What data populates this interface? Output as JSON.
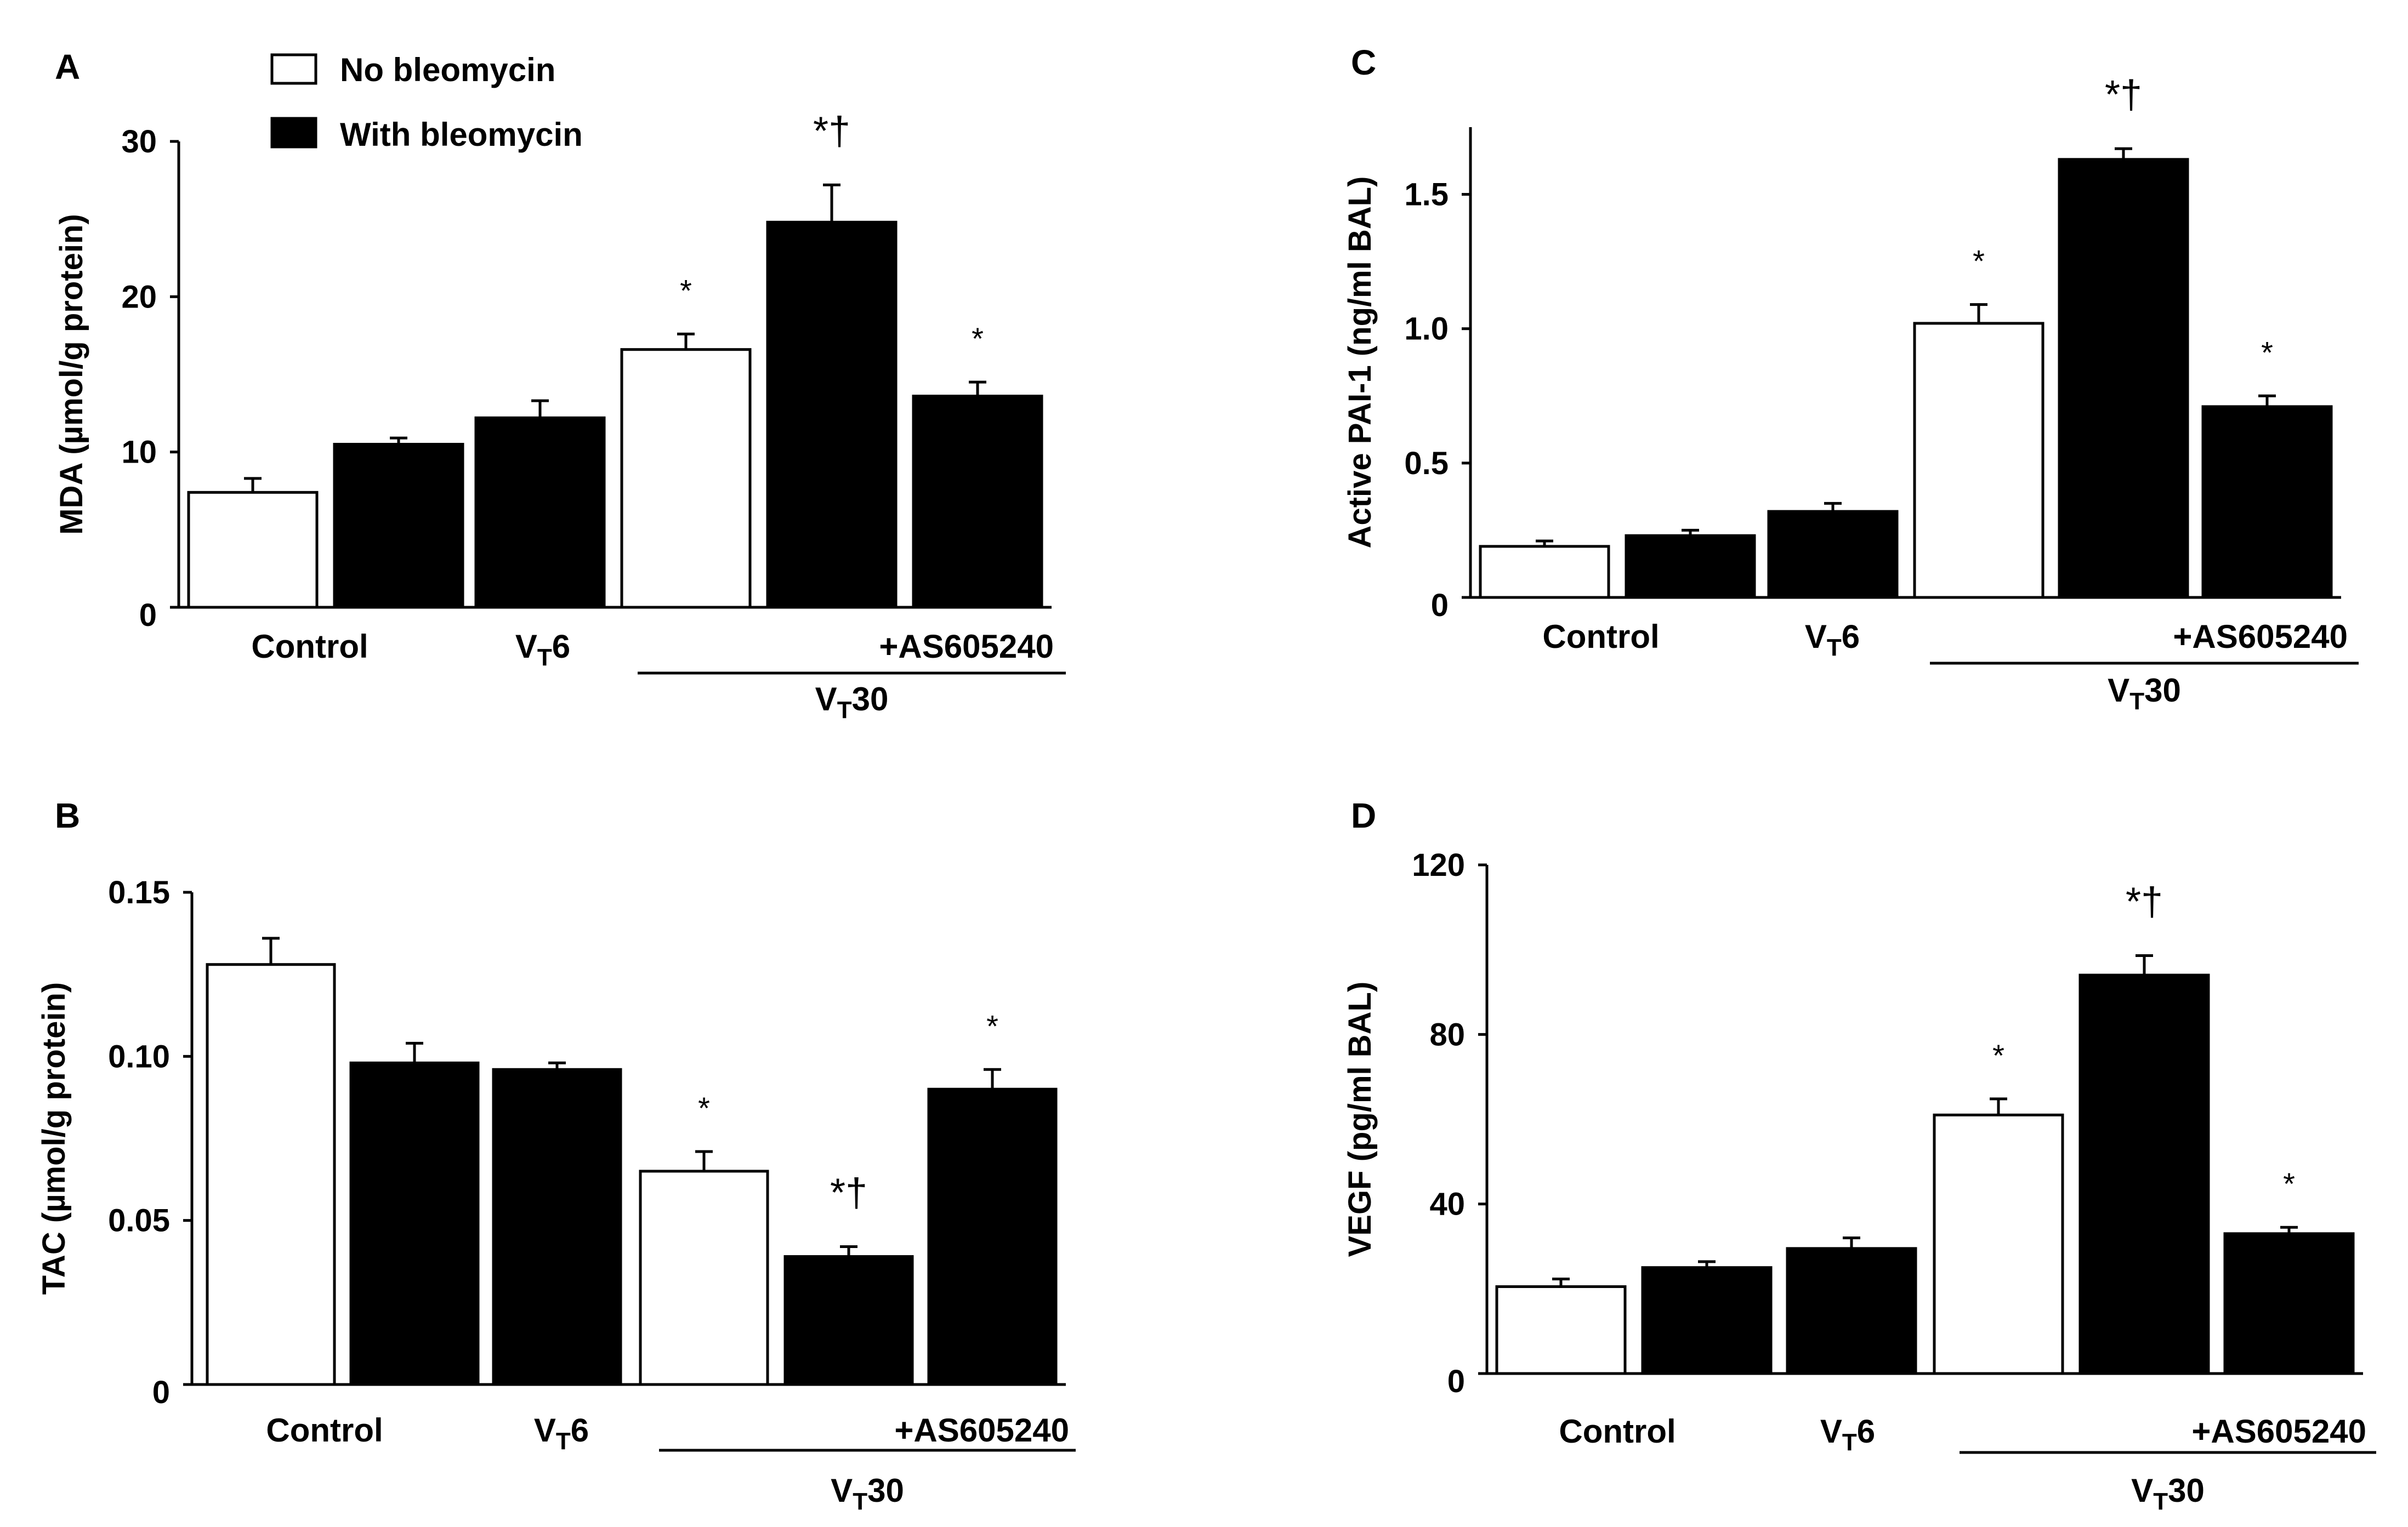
{
  "legend": [
    {
      "label": "No bleomycin",
      "color": "#ffffff"
    },
    {
      "label": "With bleomycin",
      "color": "#000000"
    }
  ],
  "chart_data": [
    {
      "type": "bar",
      "panel": "A",
      "ylabel": "MDA (µmol/g protein)",
      "ylim": [
        0,
        30
      ],
      "yticks": [
        0,
        10,
        20,
        30
      ],
      "ytick_labels": [
        "0",
        "10",
        "20",
        "30"
      ],
      "bars": [
        {
          "group": "Control",
          "bleomycin": false,
          "value": 7.4,
          "error": 0.9,
          "annotation": ""
        },
        {
          "group": "Control",
          "bleomycin": true,
          "value": 10.5,
          "error": 0.4,
          "annotation": ""
        },
        {
          "group": "VT6",
          "bleomycin": true,
          "value": 12.2,
          "error": 1.1,
          "annotation": ""
        },
        {
          "group": "VT30",
          "bleomycin": false,
          "value": 16.6,
          "error": 1.0,
          "annotation": "*"
        },
        {
          "group": "VT30",
          "bleomycin": true,
          "value": 24.8,
          "error": 2.4,
          "annotation": "*†"
        },
        {
          "group": "VT30+AS605240",
          "bleomycin": true,
          "value": 13.6,
          "error": 0.9,
          "annotation": "*"
        }
      ]
    },
    {
      "type": "bar",
      "panel": "B",
      "ylabel": "TAC (µmol/g protein)",
      "ylim": [
        0,
        0.15
      ],
      "yticks": [
        0,
        0.05,
        0.1,
        0.15
      ],
      "ytick_labels": [
        "0",
        "0.05",
        "0.10",
        "0.15"
      ],
      "bars": [
        {
          "group": "Control",
          "bleomycin": false,
          "value": 0.128,
          "error": 0.008,
          "annotation": ""
        },
        {
          "group": "Control",
          "bleomycin": true,
          "value": 0.098,
          "error": 0.006,
          "annotation": ""
        },
        {
          "group": "VT6",
          "bleomycin": true,
          "value": 0.096,
          "error": 0.002,
          "annotation": ""
        },
        {
          "group": "VT30",
          "bleomycin": false,
          "value": 0.065,
          "error": 0.006,
          "annotation": "*"
        },
        {
          "group": "VT30",
          "bleomycin": true,
          "value": 0.039,
          "error": 0.003,
          "annotation": "*†"
        },
        {
          "group": "VT30+AS605240",
          "bleomycin": true,
          "value": 0.09,
          "error": 0.006,
          "annotation": "*"
        }
      ]
    },
    {
      "type": "bar",
      "panel": "C",
      "ylabel": "Active PAI-1 (ng/ml BAL)",
      "ylim": [
        0,
        1.75
      ],
      "yticks": [
        0,
        0.5,
        1.0,
        1.5
      ],
      "ytick_labels": [
        "0",
        "0.5",
        "1.0",
        "1.5"
      ],
      "bars": [
        {
          "group": "Control",
          "bleomycin": false,
          "value": 0.19,
          "error": 0.02,
          "annotation": ""
        },
        {
          "group": "Control",
          "bleomycin": true,
          "value": 0.23,
          "error": 0.02,
          "annotation": ""
        },
        {
          "group": "VT6",
          "bleomycin": true,
          "value": 0.32,
          "error": 0.03,
          "annotation": ""
        },
        {
          "group": "VT30",
          "bleomycin": false,
          "value": 1.02,
          "error": 0.07,
          "annotation": "*"
        },
        {
          "group": "VT30",
          "bleomycin": true,
          "value": 1.63,
          "error": 0.04,
          "annotation": "*†"
        },
        {
          "group": "VT30+AS605240",
          "bleomycin": true,
          "value": 0.71,
          "error": 0.04,
          "annotation": "*"
        }
      ]
    },
    {
      "type": "bar",
      "panel": "D",
      "ylabel": "VEGF (pg/ml BAL)",
      "ylim": [
        0,
        120
      ],
      "yticks": [
        0,
        40,
        80,
        120
      ],
      "ytick_labels": [
        "0",
        "40",
        "80",
        "120"
      ],
      "bars": [
        {
          "group": "Control",
          "bleomycin": false,
          "value": 20.5,
          "error": 1.8,
          "annotation": ""
        },
        {
          "group": "Control",
          "bleomycin": true,
          "value": 25.0,
          "error": 1.4,
          "annotation": ""
        },
        {
          "group": "VT6",
          "bleomycin": true,
          "value": 29.5,
          "error": 2.5,
          "annotation": ""
        },
        {
          "group": "VT30",
          "bleomycin": false,
          "value": 61.0,
          "error": 3.8,
          "annotation": "*"
        },
        {
          "group": "VT30",
          "bleomycin": true,
          "value": 94.0,
          "error": 4.6,
          "annotation": "*†"
        },
        {
          "group": "VT30+AS605240",
          "bleomycin": true,
          "value": 33.0,
          "error": 1.5,
          "annotation": "*"
        }
      ]
    }
  ],
  "x_axis_labels": {
    "control": "Control",
    "vt": "V",
    "vt_sub": "T",
    "vt6_num": "6",
    "vt30_num": "30",
    "inhibitor": "+AS605240"
  }
}
